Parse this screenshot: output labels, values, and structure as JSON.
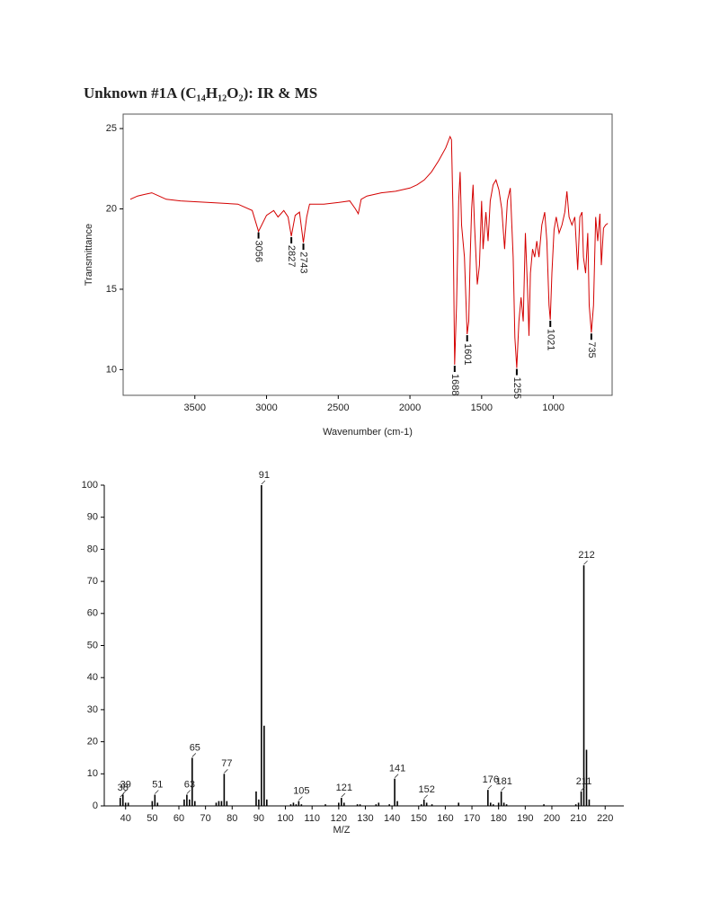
{
  "title": "Unknown #1A (C₁₄H₁₂O₂): IR & MS",
  "chart_data": [
    {
      "type": "line",
      "xlabel": "Wavenumber (cm-1)",
      "ylabel": "Transmittance",
      "color": "#d40000",
      "xlim": [
        4000,
        590
      ],
      "ylim": [
        8.4,
        25.9
      ],
      "xticks": [
        3500,
        3000,
        2500,
        2000,
        1500,
        1000
      ],
      "yticks": [
        10,
        15,
        20,
        25
      ],
      "grid": false,
      "x": [
        3950,
        3900,
        3850,
        3800,
        3750,
        3700,
        3600,
        3400,
        3200,
        3100,
        3056,
        3000,
        2950,
        2920,
        2880,
        2850,
        2827,
        2800,
        2770,
        2743,
        2720,
        2700,
        2600,
        2500,
        2420,
        2380,
        2360,
        2340,
        2300,
        2200,
        2100,
        2000,
        1950,
        1900,
        1850,
        1800,
        1750,
        1720,
        1710,
        1700,
        1688,
        1675,
        1660,
        1650,
        1640,
        1620,
        1601,
        1590,
        1580,
        1570,
        1560,
        1550,
        1530,
        1515,
        1500,
        1490,
        1470,
        1455,
        1440,
        1420,
        1400,
        1380,
        1360,
        1340,
        1320,
        1300,
        1280,
        1268,
        1255,
        1240,
        1225,
        1210,
        1195,
        1180,
        1170,
        1160,
        1145,
        1130,
        1115,
        1100,
        1080,
        1060,
        1045,
        1030,
        1021,
        1010,
        995,
        980,
        960,
        940,
        920,
        905,
        890,
        870,
        850,
        830,
        815,
        800,
        790,
        775,
        760,
        750,
        735,
        720,
        705,
        690,
        675,
        665,
        650,
        635,
        620
      ],
      "y": [
        20.6,
        20.8,
        20.9,
        21.0,
        20.8,
        20.6,
        20.5,
        20.4,
        20.3,
        19.9,
        18.6,
        19.6,
        19.9,
        19.5,
        19.9,
        19.5,
        18.3,
        19.6,
        19.8,
        17.9,
        19.5,
        20.3,
        20.3,
        20.4,
        20.5,
        20.0,
        19.7,
        20.6,
        20.8,
        21.0,
        21.1,
        21.3,
        21.5,
        21.8,
        22.3,
        23.0,
        23.8,
        24.5,
        24.3,
        20.0,
        10.3,
        14.0,
        20.5,
        22.3,
        19.0,
        17.0,
        12.2,
        13.0,
        17.0,
        20.0,
        21.5,
        19.0,
        15.3,
        16.5,
        20.5,
        17.5,
        19.8,
        18.0,
        20.5,
        21.5,
        21.8,
        21.2,
        20.0,
        17.5,
        20.5,
        21.3,
        17.0,
        12.0,
        10.1,
        13.0,
        14.5,
        13.0,
        18.5,
        15.0,
        12.1,
        16.0,
        17.5,
        17.0,
        18.0,
        17.0,
        19.0,
        19.8,
        18.0,
        14.0,
        13.1,
        16.0,
        18.7,
        19.5,
        18.5,
        19.0,
        19.8,
        21.1,
        19.5,
        19.0,
        19.5,
        16.2,
        19.5,
        19.8,
        17.0,
        16.0,
        18.5,
        14.0,
        12.3,
        14.0,
        19.5,
        18.0,
        19.7,
        16.5,
        18.8,
        19.0,
        19.1
      ],
      "peaks": {
        "x": [
          3056,
          2827,
          2743,
          1688,
          1601,
          1255,
          1021,
          735
        ],
        "y": [
          18.6,
          18.3,
          17.9,
          10.3,
          12.2,
          10.1,
          13.1,
          12.3
        ]
      }
    },
    {
      "type": "bar",
      "xlabel": "M/Z",
      "color": "#000000",
      "xlim": [
        32,
        227
      ],
      "ylim": [
        0,
        100
      ],
      "xticks": [
        40,
        50,
        60,
        70,
        80,
        90,
        100,
        110,
        120,
        130,
        140,
        150,
        160,
        170,
        180,
        190,
        200,
        210,
        220
      ],
      "yticks": [
        0,
        10,
        20,
        30,
        40,
        50,
        60,
        70,
        80,
        90,
        100
      ],
      "grid": false,
      "x": [
        38,
        39,
        40,
        41,
        50,
        51,
        52,
        62,
        63,
        64,
        65,
        66,
        74,
        75,
        76,
        77,
        78,
        89,
        90,
        91,
        92,
        93,
        102,
        103,
        104,
        105,
        106,
        115,
        120,
        121,
        122,
        127,
        128,
        134,
        135,
        139,
        141,
        142,
        151,
        152,
        153,
        155,
        165,
        176,
        177,
        178,
        180,
        181,
        182,
        183,
        197,
        209,
        210,
        211,
        212,
        213,
        214
      ],
      "values": [
        2.5,
        3.5,
        1,
        1,
        1.5,
        3.5,
        1,
        2,
        3.5,
        2,
        15,
        1.5,
        1,
        1.5,
        1.5,
        10,
        1.5,
        4.5,
        2,
        100,
        25,
        2,
        0.5,
        1,
        0.5,
        1.5,
        0.5,
        0.5,
        1,
        2.5,
        1,
        0.5,
        0.5,
        0.5,
        1,
        0.5,
        8.5,
        1.5,
        0.5,
        2,
        1,
        0.5,
        1,
        5,
        1,
        0.5,
        1,
        4.5,
        1,
        0.5,
        0.5,
        0.5,
        1,
        4.5,
        75,
        17.5,
        2
      ],
      "labeled_peaks": [
        38,
        39,
        51,
        63,
        65,
        77,
        91,
        105,
        121,
        141,
        152,
        176,
        181,
        211,
        212
      ]
    }
  ]
}
